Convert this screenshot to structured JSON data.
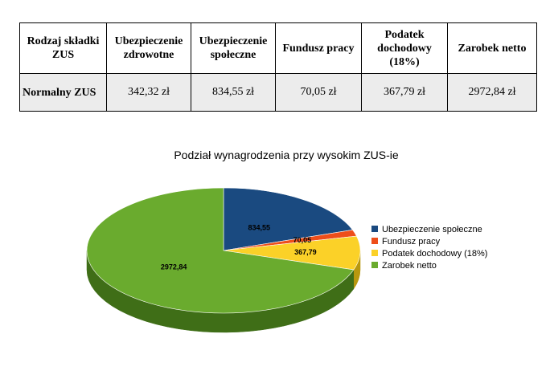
{
  "table": {
    "headers": [
      "Rodzaj składki ZUS",
      "Ubezpieczenie zdrowotne",
      "Ubezpieczenie społeczne",
      "Fundusz pracy",
      "Podatek dochodowy (18%)",
      "Zarobek netto"
    ],
    "row": {
      "label": "Normalny ZUS",
      "values": [
        "342,32 zł",
        "834,55 zł",
        "70,05 zł",
        "367,79 zł",
        "2972,84 zł"
      ]
    }
  },
  "chart_data": {
    "type": "pie",
    "title": "Podział wynagrodzenia przy wysokim ZUS-ie",
    "slices": [
      {
        "name": "Ubezpieczenie społeczne",
        "value": 834.55,
        "label": "834,55",
        "color": "#1a4a80",
        "side": "#0f2e52"
      },
      {
        "name": "Fundusz pracy",
        "value": 70.05,
        "label": "70,05",
        "color": "#ee4e1a",
        "side": "#a8330e"
      },
      {
        "name": "Podatek dochodowy (18%)",
        "value": 367.79,
        "label": "367,79",
        "color": "#fbd128",
        "side": "#b8980f"
      },
      {
        "name": "Zarobek netto",
        "value": 2972.84,
        "label": "2972,84",
        "color": "#6aab2e",
        "side": "#3f6e17"
      }
    ],
    "legend_position": "right"
  }
}
